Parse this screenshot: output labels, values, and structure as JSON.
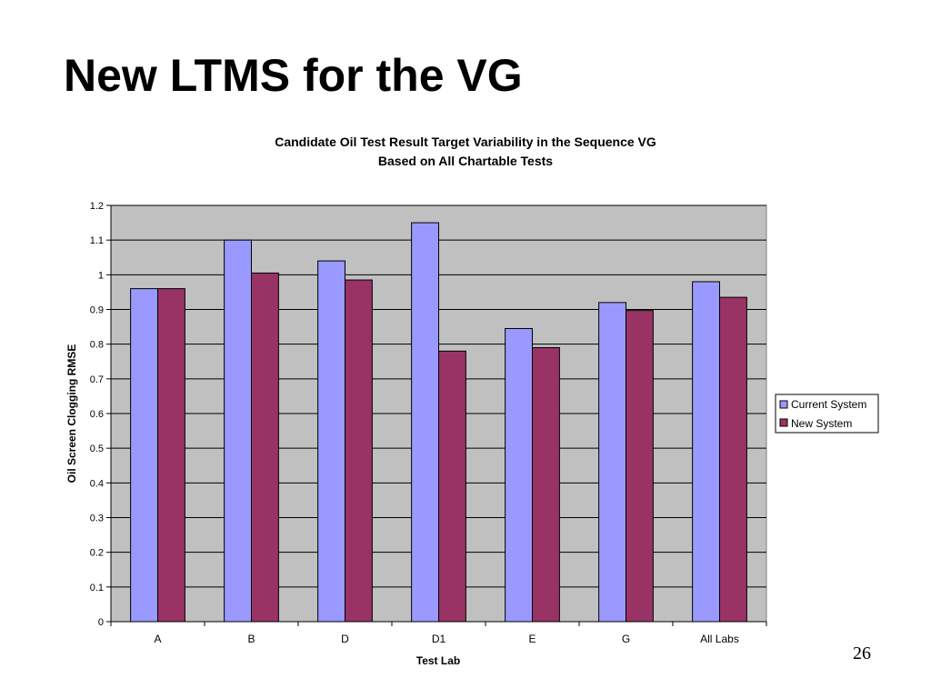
{
  "slide": {
    "title": "New LTMS for the VG",
    "page_number": "26"
  },
  "colors": {
    "plot_background": "#c0c0c0",
    "current_system": "#9999ff",
    "new_system": "#993366",
    "gridline": "#000000"
  },
  "chart_data": {
    "type": "bar",
    "title": "Candidate Oil Test Result Target Variability in the Sequence VG",
    "subtitle": "Based on All Chartable Tests",
    "xlabel": "Test Lab",
    "ylabel": "Oil Screen Clogging RMSE",
    "categories": [
      "A",
      "B",
      "D",
      "D1",
      "E",
      "G",
      "All Labs"
    ],
    "series": [
      {
        "name": "Current System",
        "values": [
          0.96,
          1.1,
          1.04,
          1.15,
          0.845,
          0.92,
          0.98
        ]
      },
      {
        "name": "New System",
        "values": [
          0.96,
          1.005,
          0.985,
          0.78,
          0.79,
          0.897,
          0.935
        ]
      }
    ],
    "ylim": [
      0,
      1.2
    ],
    "yticks": [
      "0",
      "0.1",
      "0.2",
      "0.3",
      "0.4",
      "0.5",
      "0.6",
      "0.7",
      "0.8",
      "0.9",
      "1",
      "1.1",
      "1.2"
    ],
    "grid": true,
    "legend_position": "right"
  }
}
